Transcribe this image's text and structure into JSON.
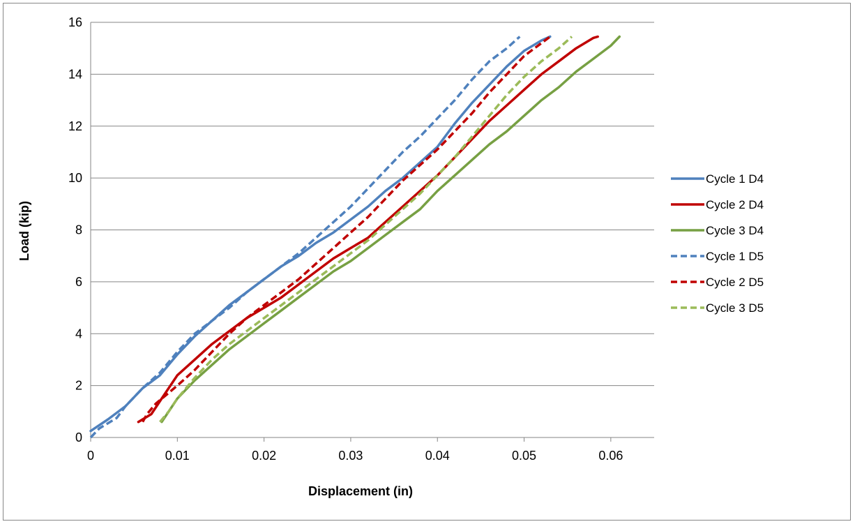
{
  "chart_data": {
    "type": "line",
    "title": "",
    "xlabel": "Displacement (in)",
    "ylabel": "Load (kip)",
    "xlim": [
      0,
      0.065
    ],
    "ylim": [
      0,
      16
    ],
    "x_ticks": [
      "0",
      "0.01",
      "0.02",
      "0.03",
      "0.04",
      "0.05",
      "0.06"
    ],
    "y_ticks": [
      "0",
      "2",
      "4",
      "6",
      "8",
      "10",
      "12",
      "14",
      "16"
    ],
    "grid": "horizontal major gridlines",
    "legend_position": "right",
    "series": [
      {
        "name": "Cycle 1 D4",
        "color": "#4F81BD",
        "dash": "solid",
        "points": [
          [
            0.0,
            0.25
          ],
          [
            0.002,
            0.7
          ],
          [
            0.004,
            1.2
          ],
          [
            0.006,
            1.9
          ],
          [
            0.008,
            2.4
          ],
          [
            0.01,
            3.2
          ],
          [
            0.012,
            3.9
          ],
          [
            0.014,
            4.5
          ],
          [
            0.016,
            5.1
          ],
          [
            0.018,
            5.6
          ],
          [
            0.02,
            6.1
          ],
          [
            0.022,
            6.6
          ],
          [
            0.024,
            7.0
          ],
          [
            0.026,
            7.5
          ],
          [
            0.028,
            7.9
          ],
          [
            0.03,
            8.4
          ],
          [
            0.032,
            8.9
          ],
          [
            0.034,
            9.5
          ],
          [
            0.036,
            10.0
          ],
          [
            0.038,
            10.6
          ],
          [
            0.04,
            11.2
          ],
          [
            0.042,
            12.1
          ],
          [
            0.044,
            12.9
          ],
          [
            0.046,
            13.6
          ],
          [
            0.048,
            14.3
          ],
          [
            0.05,
            14.9
          ],
          [
            0.052,
            15.3
          ],
          [
            0.053,
            15.45
          ]
        ]
      },
      {
        "name": "Cycle 2 D4",
        "color": "#C00000",
        "dash": "solid",
        "points": [
          [
            0.0055,
            0.6
          ],
          [
            0.007,
            0.9
          ],
          [
            0.008,
            1.4
          ],
          [
            0.01,
            2.4
          ],
          [
            0.012,
            3.0
          ],
          [
            0.014,
            3.6
          ],
          [
            0.016,
            4.1
          ],
          [
            0.018,
            4.6
          ],
          [
            0.02,
            5.0
          ],
          [
            0.022,
            5.4
          ],
          [
            0.024,
            5.9
          ],
          [
            0.026,
            6.4
          ],
          [
            0.028,
            6.9
          ],
          [
            0.03,
            7.3
          ],
          [
            0.032,
            7.7
          ],
          [
            0.034,
            8.3
          ],
          [
            0.036,
            8.9
          ],
          [
            0.038,
            9.5
          ],
          [
            0.04,
            10.1
          ],
          [
            0.042,
            10.8
          ],
          [
            0.044,
            11.5
          ],
          [
            0.046,
            12.2
          ],
          [
            0.048,
            12.8
          ],
          [
            0.05,
            13.4
          ],
          [
            0.052,
            14.0
          ],
          [
            0.054,
            14.5
          ],
          [
            0.056,
            15.0
          ],
          [
            0.058,
            15.4
          ],
          [
            0.0585,
            15.45
          ]
        ]
      },
      {
        "name": "Cycle 3 D4",
        "color": "#77A043",
        "dash": "solid",
        "points": [
          [
            0.0082,
            0.6
          ],
          [
            0.009,
            1.0
          ],
          [
            0.01,
            1.5
          ],
          [
            0.012,
            2.2
          ],
          [
            0.014,
            2.8
          ],
          [
            0.016,
            3.4
          ],
          [
            0.018,
            3.9
          ],
          [
            0.02,
            4.4
          ],
          [
            0.022,
            4.9
          ],
          [
            0.024,
            5.4
          ],
          [
            0.026,
            5.9
          ],
          [
            0.028,
            6.4
          ],
          [
            0.03,
            6.8
          ],
          [
            0.032,
            7.3
          ],
          [
            0.034,
            7.8
          ],
          [
            0.036,
            8.3
          ],
          [
            0.038,
            8.8
          ],
          [
            0.04,
            9.5
          ],
          [
            0.042,
            10.1
          ],
          [
            0.044,
            10.7
          ],
          [
            0.046,
            11.3
          ],
          [
            0.048,
            11.8
          ],
          [
            0.05,
            12.4
          ],
          [
            0.052,
            13.0
          ],
          [
            0.054,
            13.5
          ],
          [
            0.056,
            14.1
          ],
          [
            0.058,
            14.6
          ],
          [
            0.06,
            15.1
          ],
          [
            0.061,
            15.45
          ]
        ]
      },
      {
        "name": "Cycle 1 D5",
        "color": "#4F81BD",
        "dash": "dashed",
        "points": [
          [
            0.0,
            0.0
          ],
          [
            0.001,
            0.35
          ],
          [
            0.003,
            0.75
          ],
          [
            0.004,
            1.2
          ],
          [
            0.006,
            1.9
          ],
          [
            0.008,
            2.5
          ],
          [
            0.01,
            3.3
          ],
          [
            0.012,
            4.0
          ],
          [
            0.014,
            4.5
          ],
          [
            0.016,
            5.0
          ],
          [
            0.018,
            5.6
          ],
          [
            0.02,
            6.1
          ],
          [
            0.022,
            6.6
          ],
          [
            0.024,
            7.1
          ],
          [
            0.026,
            7.7
          ],
          [
            0.028,
            8.3
          ],
          [
            0.03,
            8.9
          ],
          [
            0.032,
            9.6
          ],
          [
            0.034,
            10.3
          ],
          [
            0.036,
            11.0
          ],
          [
            0.038,
            11.6
          ],
          [
            0.04,
            12.3
          ],
          [
            0.042,
            13.0
          ],
          [
            0.044,
            13.8
          ],
          [
            0.046,
            14.5
          ],
          [
            0.048,
            15.0
          ],
          [
            0.0495,
            15.45
          ]
        ]
      },
      {
        "name": "Cycle 2 D5",
        "color": "#C00000",
        "dash": "dashed",
        "points": [
          [
            0.006,
            0.6
          ],
          [
            0.0065,
            0.9
          ],
          [
            0.0075,
            1.3
          ],
          [
            0.01,
            2.0
          ],
          [
            0.012,
            2.6
          ],
          [
            0.014,
            3.3
          ],
          [
            0.016,
            4.0
          ],
          [
            0.018,
            4.6
          ],
          [
            0.02,
            5.1
          ],
          [
            0.022,
            5.6
          ],
          [
            0.024,
            6.1
          ],
          [
            0.026,
            6.7
          ],
          [
            0.028,
            7.3
          ],
          [
            0.03,
            7.9
          ],
          [
            0.032,
            8.5
          ],
          [
            0.034,
            9.2
          ],
          [
            0.036,
            9.9
          ],
          [
            0.038,
            10.5
          ],
          [
            0.04,
            11.1
          ],
          [
            0.042,
            11.8
          ],
          [
            0.044,
            12.5
          ],
          [
            0.046,
            13.3
          ],
          [
            0.048,
            14.0
          ],
          [
            0.05,
            14.7
          ],
          [
            0.052,
            15.2
          ],
          [
            0.053,
            15.45
          ]
        ]
      },
      {
        "name": "Cycle 3 D5",
        "color": "#9BBB59",
        "dash": "dashed",
        "points": [
          [
            0.008,
            0.6
          ],
          [
            0.009,
            1.0
          ],
          [
            0.01,
            1.5
          ],
          [
            0.012,
            2.3
          ],
          [
            0.014,
            3.0
          ],
          [
            0.016,
            3.6
          ],
          [
            0.018,
            4.1
          ],
          [
            0.02,
            4.6
          ],
          [
            0.022,
            5.1
          ],
          [
            0.024,
            5.6
          ],
          [
            0.026,
            6.1
          ],
          [
            0.028,
            6.6
          ],
          [
            0.03,
            7.1
          ],
          [
            0.032,
            7.6
          ],
          [
            0.034,
            8.2
          ],
          [
            0.036,
            8.8
          ],
          [
            0.038,
            9.4
          ],
          [
            0.04,
            10.1
          ],
          [
            0.042,
            10.8
          ],
          [
            0.044,
            11.6
          ],
          [
            0.046,
            12.4
          ],
          [
            0.048,
            13.2
          ],
          [
            0.05,
            13.9
          ],
          [
            0.052,
            14.5
          ],
          [
            0.054,
            15.0
          ],
          [
            0.0555,
            15.45
          ]
        ]
      }
    ]
  }
}
